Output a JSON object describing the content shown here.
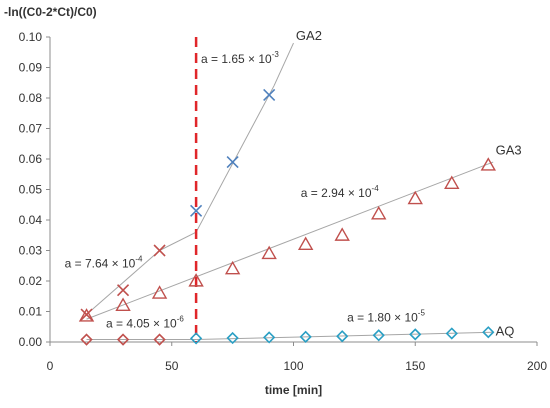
{
  "chart_data": {
    "type": "scatter",
    "ylabel": "-ln((C0-2*Ct)/C0)",
    "xlabel": "time [min]",
    "xlim": [
      0,
      200
    ],
    "ylim": [
      0,
      0.1
    ],
    "xticks": [
      "0",
      "50",
      "100",
      "150",
      "200"
    ],
    "yticks": [
      "0.00",
      "0.01",
      "0.02",
      "0.03",
      "0.04",
      "0.05",
      "0.06",
      "0.07",
      "0.08",
      "0.09",
      "0.10"
    ],
    "grid": false,
    "vline": {
      "x": 60,
      "color": "#e0262a"
    },
    "colors": {
      "ga2": "#4f81bd",
      "red": "#c0504d",
      "aq": "#2a9fc4",
      "fit": "#a6a6a6"
    },
    "series": [
      {
        "name": "GA2",
        "marker": "x",
        "points": [
          {
            "x": 15,
            "y": 0.009,
            "color": "red"
          },
          {
            "x": 30,
            "y": 0.017,
            "color": "red"
          },
          {
            "x": 45,
            "y": 0.03,
            "color": "red"
          },
          {
            "x": 60,
            "y": 0.043,
            "color": "ga2"
          },
          {
            "x": 75,
            "y": 0.059,
            "color": "ga2"
          },
          {
            "x": 90,
            "y": 0.081,
            "color": "ga2"
          }
        ]
      },
      {
        "name": "GA3",
        "marker": "triangle",
        "points": [
          {
            "x": 15,
            "y": 0.0085
          },
          {
            "x": 30,
            "y": 0.012
          },
          {
            "x": 45,
            "y": 0.016
          },
          {
            "x": 60,
            "y": 0.02
          },
          {
            "x": 75,
            "y": 0.024
          },
          {
            "x": 90,
            "y": 0.029
          },
          {
            "x": 105,
            "y": 0.032
          },
          {
            "x": 120,
            "y": 0.035
          },
          {
            "x": 135,
            "y": 0.042
          },
          {
            "x": 150,
            "y": 0.047
          },
          {
            "x": 165,
            "y": 0.052
          },
          {
            "x": 180,
            "y": 0.058
          }
        ]
      },
      {
        "name": "AQ",
        "marker": "diamond",
        "points": [
          {
            "x": 15,
            "y": 0.0008,
            "color": "red"
          },
          {
            "x": 30,
            "y": 0.0008,
            "color": "red"
          },
          {
            "x": 45,
            "y": 0.0008,
            "color": "red"
          },
          {
            "x": 60,
            "y": 0.0012,
            "color": "aq"
          },
          {
            "x": 75,
            "y": 0.0013,
            "color": "aq"
          },
          {
            "x": 90,
            "y": 0.0015,
            "color": "aq"
          },
          {
            "x": 105,
            "y": 0.0017,
            "color": "aq"
          },
          {
            "x": 120,
            "y": 0.0019,
            "color": "aq"
          },
          {
            "x": 135,
            "y": 0.0022,
            "color": "aq"
          },
          {
            "x": 150,
            "y": 0.0025,
            "color": "aq"
          },
          {
            "x": 165,
            "y": 0.0028,
            "color": "aq"
          },
          {
            "x": 180,
            "y": 0.0032,
            "color": "aq"
          }
        ]
      }
    ],
    "fit_lines": [
      {
        "series": "GA2",
        "from": [
          15,
          0.009
        ],
        "to": [
          45,
          0.03
        ]
      },
      {
        "series": "GA2",
        "from": [
          45,
          0.03
        ],
        "to": [
          60,
          0.036
        ]
      },
      {
        "series": "GA2",
        "from": [
          60,
          0.036
        ],
        "to": [
          92,
          0.084
        ]
      },
      {
        "series": "GA2",
        "from": [
          92,
          0.084
        ],
        "to": [
          100,
          0.098
        ]
      },
      {
        "series": "GA3",
        "from": [
          15,
          0.0075
        ],
        "to": [
          182,
          0.059
        ]
      },
      {
        "series": "AQ",
        "from": [
          15,
          0.0008
        ],
        "to": [
          60,
          0.0008
        ]
      },
      {
        "series": "AQ",
        "from": [
          60,
          0.0008
        ],
        "to": [
          182,
          0.0032
        ]
      }
    ],
    "annotations": [
      {
        "id": "ga2-after",
        "base": "a = 1.65 × 10",
        "exp": "-3",
        "x": 62,
        "y": 0.0915
      },
      {
        "id": "ga3",
        "base": "a = 2.94 × 10",
        "exp": "-4",
        "x": 103,
        "y": 0.0475
      },
      {
        "id": "ga2-before",
        "base": "a = 7.64 × 10",
        "exp": "-4",
        "x": 6,
        "y": 0.0245
      },
      {
        "id": "aq-before",
        "base": "a = 4.05 × 10",
        "exp": "-6",
        "x": 23,
        "y": 0.0048
      },
      {
        "id": "aq-after",
        "base": "a = 1.80 × 10",
        "exp": "-5",
        "x": 122,
        "y": 0.0067
      }
    ],
    "series_labels": [
      {
        "text": "GA2",
        "x": 101,
        "y": 0.099
      },
      {
        "text": "GA3",
        "x": 183,
        "y": 0.0615
      },
      {
        "text": "AQ",
        "x": 183,
        "y": 0.0022
      }
    ]
  }
}
